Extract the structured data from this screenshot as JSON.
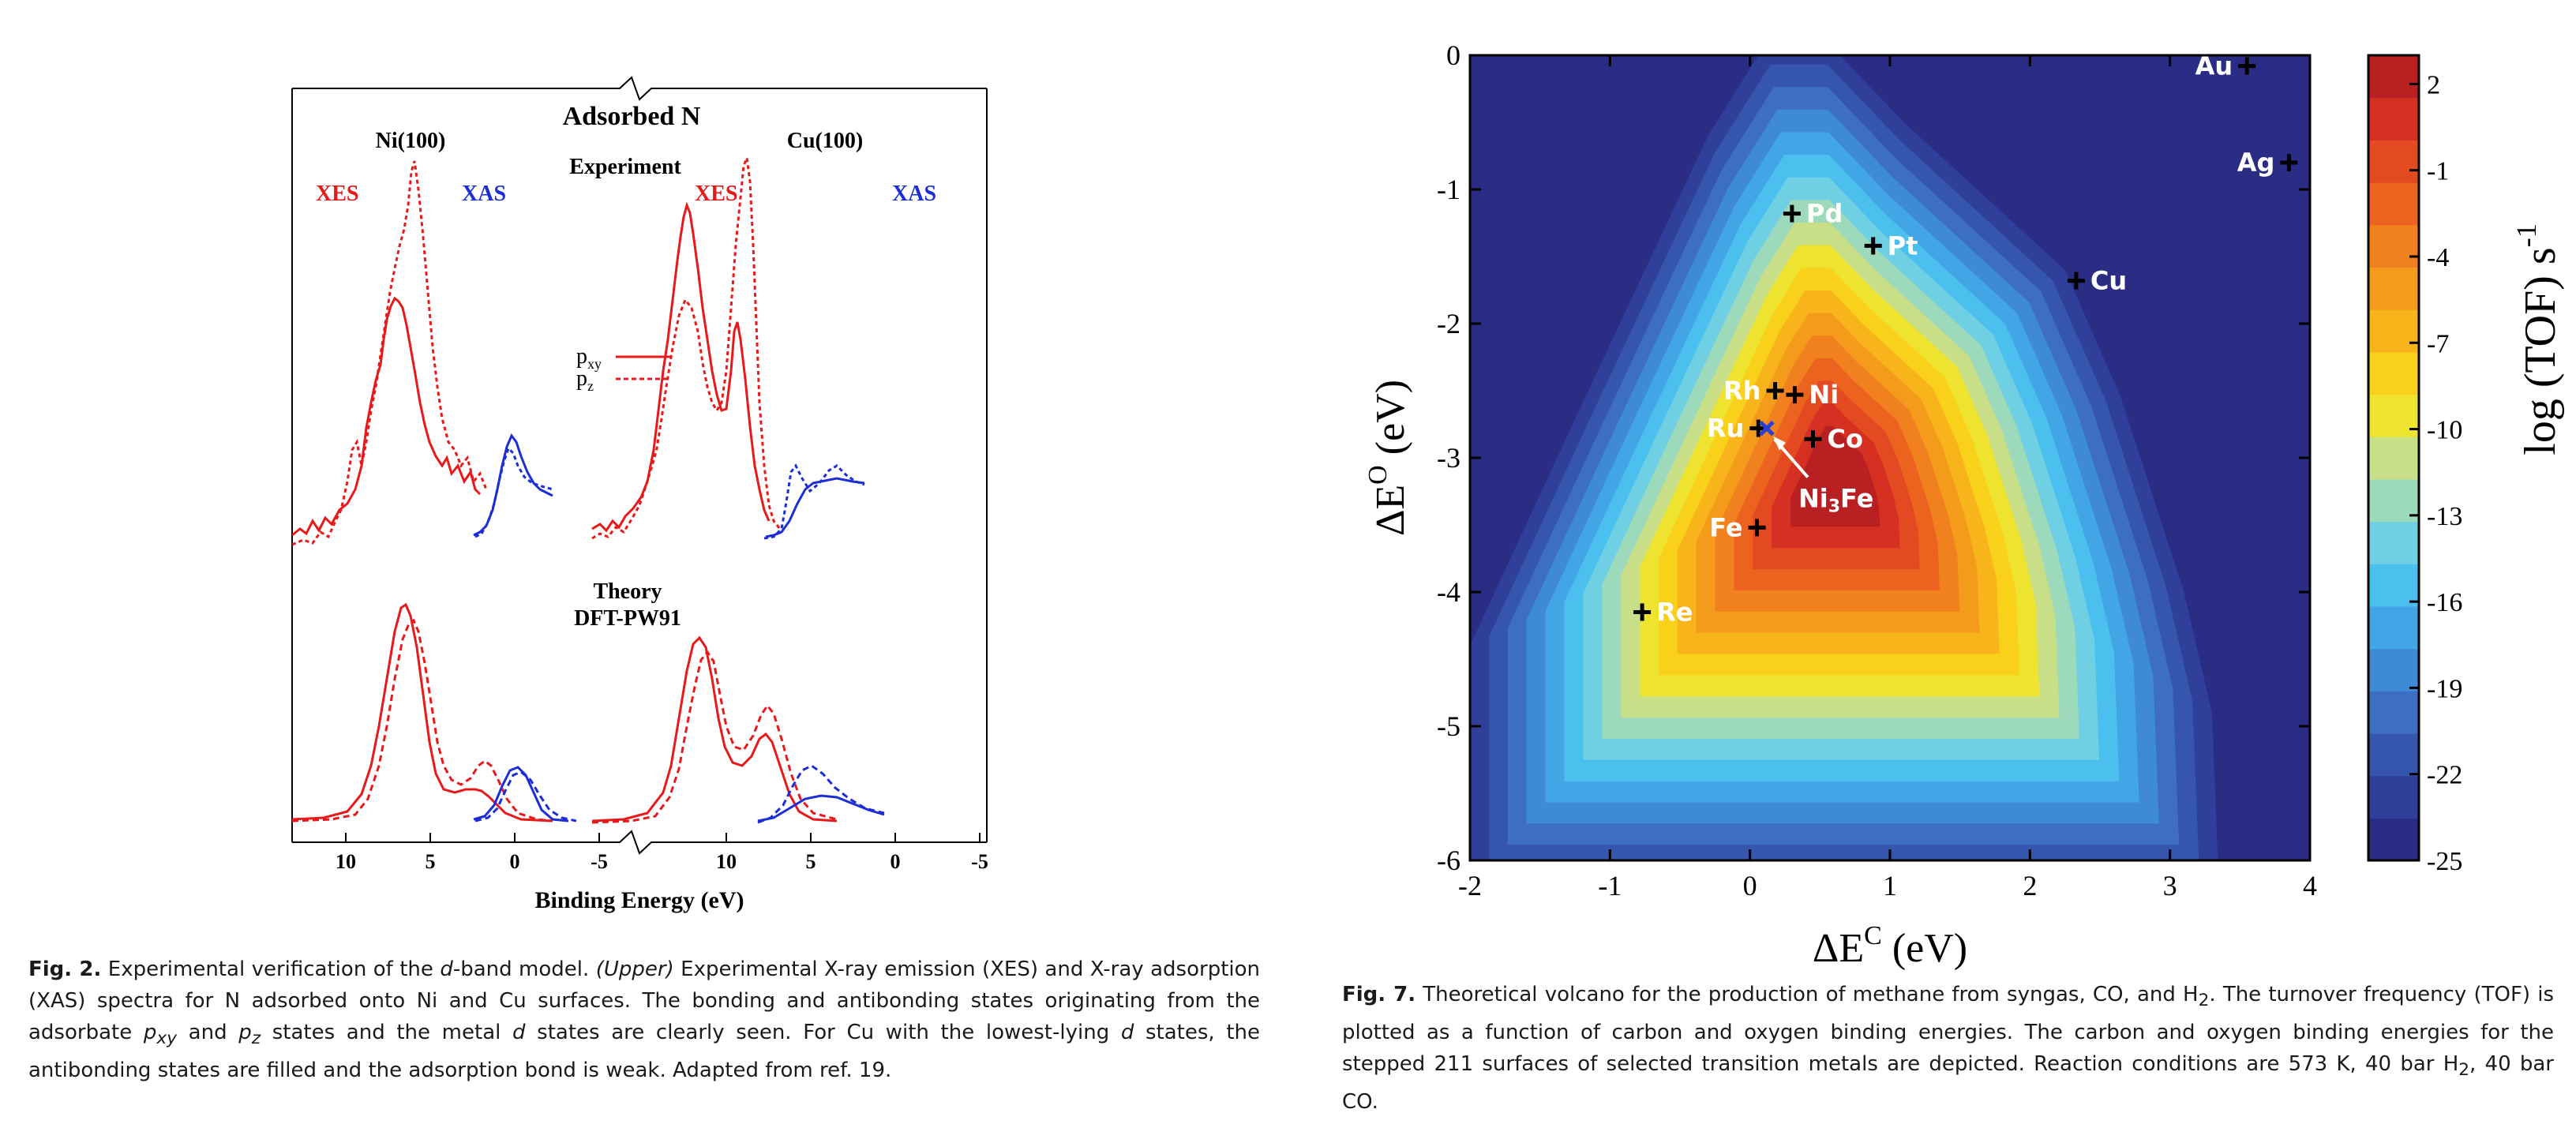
{
  "figure2": {
    "header_title": "Adsorbed N",
    "left_panel_title": "Ni(100)",
    "right_panel_title": "Cu(100)",
    "experiment_label": "Experiment",
    "theory_label": "Theory",
    "theory_method": "DFT-PW91",
    "xes_label": "XES",
    "xas_label": "XAS",
    "legend": {
      "pxy_base": "p",
      "pxy_sub": "xy",
      "pz_base": "p",
      "pz_sub": "z"
    },
    "x_ticks": [
      "10",
      "5",
      "0",
      "-5"
    ],
    "xlabel": "Binding Energy (eV)",
    "colors": {
      "xes": "#e8191b",
      "xas": "#1c2ed6"
    },
    "caption": {
      "fignum": "Fig. 2.",
      "title_pre": "Experimental verification of the ",
      "title_italic": "d",
      "title_post": "-band model. ",
      "upper": "(Upper)",
      "s1": " Experimental X-ray emission (XES) and X-ray adsorption (XAS) spectra for N adsorbed onto Ni and Cu surfaces. The bonding and antibonding states originating from the adsorbate ",
      "pxy_p": "p",
      "pxy_s": "xy",
      "s2": " and ",
      "pz_p": "p",
      "pz_s": "z",
      "s3": " states and the metal ",
      "d1": "d",
      "s4": " states are clearly seen. For Cu with the lowest-lying ",
      "d2": "d",
      "s5": " states, the antibonding states are filled and the adsorption bond is weak. Adapted from ref. 19."
    }
  },
  "figure7": {
    "chart_data": {
      "type": "heatmap",
      "xlabel_base": "ΔE",
      "xlabel_sup": "C",
      "xlabel_unit": " (eV)",
      "ylabel_base": "ΔE",
      "ylabel_sup": "O",
      "ylabel_unit": " (eV)",
      "xlim": [
        -2,
        4
      ],
      "ylim": [
        -6,
        0
      ],
      "x_ticks": [
        "-2",
        "-1",
        "0",
        "1",
        "2",
        "3",
        "4"
      ],
      "y_ticks": [
        "0",
        "-1",
        "-2",
        "-3",
        "-4",
        "-5",
        "-6"
      ],
      "colorbar_label": "log (TOF) s",
      "colorbar_sup": "-1",
      "colorbar_ticks": [
        "2",
        "-1",
        "-4",
        "-7",
        "-10",
        "-13",
        "-16",
        "-19",
        "-22",
        "-25"
      ],
      "colorbar_range": [
        -25,
        3
      ],
      "metals": [
        {
          "name": "Au",
          "x": 3.55,
          "y": -0.08,
          "label_side": "left"
        },
        {
          "name": "Ag",
          "x": 3.85,
          "y": -0.8,
          "label_side": "left"
        },
        {
          "name": "Pd",
          "x": 0.3,
          "y": -1.18,
          "label_side": "right"
        },
        {
          "name": "Pt",
          "x": 0.88,
          "y": -1.42,
          "label_side": "right"
        },
        {
          "name": "Cu",
          "x": 2.33,
          "y": -1.68,
          "label_side": "right"
        },
        {
          "name": "Rh",
          "x": 0.18,
          "y": -2.5,
          "label_side": "left"
        },
        {
          "name": "Ni",
          "x": 0.32,
          "y": -2.53,
          "label_side": "right"
        },
        {
          "name": "Ru",
          "x": 0.06,
          "y": -2.78,
          "label_side": "left"
        },
        {
          "name": "Co",
          "x": 0.45,
          "y": -2.86,
          "label_side": "right"
        },
        {
          "name": "Fe",
          "x": 0.05,
          "y": -3.52,
          "label_side": "left"
        },
        {
          "name": "Re",
          "x": -0.77,
          "y": -4.15,
          "label_side": "right"
        }
      ],
      "alloy": {
        "name_base": "Ni",
        "name_sub": "3",
        "name_end": "Fe",
        "x": 0.12,
        "y": -2.78
      }
    },
    "caption": {
      "fignum": "Fig. 7.",
      "s1": "Theoretical volcano for the production of methane from syngas, CO, and H",
      "sub1": "2",
      "s2": ". The turnover frequency (TOF) is plotted as a function of carbon and oxygen binding energies. The carbon and oxygen binding energies for the stepped 211 surfaces of selected transition metals are depicted. Reaction conditions are 573 K, 40 bar H",
      "sub2": "2",
      "s3": ", 40 bar CO."
    }
  }
}
